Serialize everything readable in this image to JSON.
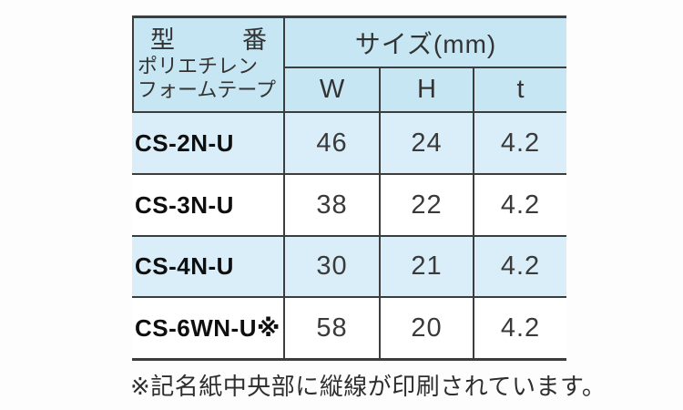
{
  "table": {
    "header": {
      "model_char_left": "型",
      "model_char_right": "番",
      "model_sub_line1": "ポリエチレン",
      "model_sub_line2": "フォームテープ",
      "size_label": "サイズ(mm)",
      "col_w": "W",
      "col_h": "H",
      "col_t": "t"
    },
    "rows": [
      {
        "model": "CS-2N-U",
        "w": "46",
        "h": "24",
        "t": "4.2"
      },
      {
        "model": "CS-3N-U",
        "w": "38",
        "h": "22",
        "t": "4.2"
      },
      {
        "model": "CS-4N-U",
        "w": "30",
        "h": "21",
        "t": "4.2"
      },
      {
        "model": "CS-6WN-U※",
        "w": "58",
        "h": "20",
        "t": "4.2"
      }
    ]
  },
  "footnote": "※記名紙中央部に縦線が印刷されています。",
  "colors": {
    "header_bg": "#c7e6f3",
    "row_alt_bg": "#d9eef8",
    "row_bg": "#ffffff",
    "border": "#3d3d3d",
    "header_text": "#333333",
    "model_text": "#0f0f0f",
    "number_text": "#3a3a3a",
    "note_text": "#2e2e2e",
    "page_bg": "#fdfdfd"
  }
}
